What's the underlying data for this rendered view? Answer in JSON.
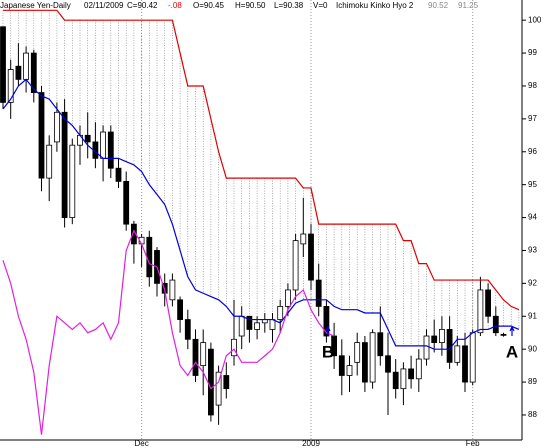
{
  "chart_data": {
    "type": "candlestick",
    "header": [
      "Japanese Yen-Daily",
      "02/11/2009",
      "C=90.42",
      "-.08",
      "O=90.45",
      "H=90.50",
      "L=90.38",
      "V=0",
      "Ichimoku Kinko Hyo 2",
      "90.52",
      "91.25"
    ],
    "categories": [
      null,
      null,
      null,
      null,
      null,
      null,
      null,
      null,
      null,
      null,
      null,
      null,
      null,
      null,
      null,
      null,
      null,
      null,
      "Dec",
      null,
      null,
      null,
      null,
      null,
      null,
      null,
      null,
      null,
      null,
      null,
      null,
      null,
      null,
      null,
      null,
      null,
      null,
      null,
      null,
      null,
      "2009",
      null,
      null,
      null,
      null,
      null,
      null,
      null,
      null,
      null,
      null,
      null,
      null,
      null,
      null,
      null,
      null,
      null,
      null,
      null,
      null,
      "Feb",
      null,
      null,
      null,
      null,
      null,
      null
    ],
    "candles": {
      "open": [
        99.8,
        97.5,
        98.6,
        98.2,
        99,
        97.8,
        95.2,
        96.3,
        97.2,
        94,
        96.2,
        96.5,
        96.3,
        95.8,
        96.6,
        95.5,
        95.1,
        93.8,
        93.2,
        93.4,
        93,
        92,
        91.5,
        91.5,
        90.9,
        90.3,
        89.5,
        90,
        88.3,
        89.2,
        89.8,
        90.4,
        91,
        90.6,
        90.8,
        90.6,
        90.9,
        91.3,
        91.8,
        93.2,
        93.5,
        92.1,
        91.3,
        90.4,
        89.8,
        89.2,
        89.6,
        90.2,
        89,
        90.5,
        89.8,
        89.3,
        88.8,
        89.4,
        89.1,
        89.7,
        90.4,
        90.2,
        90.6,
        89.6,
        90.1,
        89,
        90.5,
        91.8,
        91,
        90.45
      ],
      "high": [
        99.8,
        98.8,
        99.3,
        99.2,
        99.1,
        98,
        96.5,
        97.5,
        97.6,
        96.4,
        96.8,
        97.2,
        96.9,
        96.8,
        96.8,
        95.8,
        95.4,
        93.9,
        93.5,
        93.6,
        93.1,
        92.3,
        92.3,
        91.6,
        91.2,
        90.6,
        90.6,
        90.2,
        89.5,
        89.6,
        91.5,
        91.3,
        91,
        91,
        91.1,
        91.1,
        91.5,
        92,
        93.5,
        94.6,
        93.8,
        92.6,
        91.5,
        90.8,
        90.3,
        89.8,
        90.5,
        90.4,
        90.6,
        91.3,
        90.5,
        89.7,
        89.6,
        89.8,
        90,
        90.6,
        90.9,
        91,
        91,
        90.4,
        90.5,
        90.6,
        92.2,
        92,
        91.3,
        90.5
      ],
      "low": [
        97.3,
        97,
        98,
        97.8,
        97.5,
        94.8,
        94.5,
        96,
        93.7,
        93.8,
        95.6,
        95.8,
        95.5,
        95.1,
        95.2,
        94.9,
        93.6,
        92.6,
        92.5,
        91.9,
        91.6,
        91.3,
        91.3,
        90.5,
        90,
        89,
        88.6,
        87.8,
        87.7,
        88.5,
        89.5,
        90,
        90.2,
        90.3,
        90.5,
        90.2,
        90.5,
        91,
        91.5,
        92.8,
        91.8,
        91,
        90.2,
        89.4,
        88.6,
        88.7,
        89.2,
        88.7,
        88.8,
        89.5,
        88,
        88.5,
        88.3,
        88.8,
        88.7,
        89.5,
        89.9,
        89.8,
        89.4,
        89.5,
        88.7,
        88.9,
        90.4,
        90.8,
        90.4,
        90.38
      ],
      "close": [
        97.5,
        98.5,
        98.2,
        99,
        97.8,
        95.2,
        96.2,
        97.2,
        94,
        96.2,
        96.5,
        96.3,
        95.8,
        96.6,
        95.5,
        95.1,
        93.8,
        93.2,
        93.4,
        92.2,
        92,
        91.7,
        92.1,
        90.9,
        90.3,
        89.2,
        90.2,
        88,
        89.3,
        88.8,
        90.3,
        91,
        90.6,
        90.8,
        90.9,
        90.9,
        91.3,
        91.8,
        93.3,
        93.5,
        92.1,
        91.3,
        90.4,
        89.8,
        89.2,
        89.5,
        90.2,
        89,
        90.5,
        89.8,
        89.3,
        88.8,
        89.4,
        89.1,
        89.7,
        90.4,
        90.2,
        90.6,
        89.6,
        90.1,
        89,
        90.5,
        91.8,
        91,
        90.5,
        90.42
      ]
    },
    "series": [
      {
        "color": "#e00000",
        "values": [
          100.3,
          100.3,
          100.3,
          100.3,
          100.3,
          100.3,
          100.3,
          100.3,
          100,
          100,
          100,
          100,
          100,
          100,
          100,
          100,
          100,
          100,
          100,
          100,
          100,
          100,
          100,
          99,
          98,
          98,
          98,
          97,
          96,
          95.2,
          95.2,
          95.2,
          95.2,
          95.2,
          95.2,
          95.2,
          95.2,
          95.2,
          95.2,
          94.9,
          94.9,
          93.8,
          93.8,
          93.8,
          93.8,
          93.8,
          93.8,
          93.8,
          93.8,
          93.8,
          93.8,
          93.8,
          93.3,
          93.3,
          92.6,
          92.6,
          92.1,
          92.1,
          92.1,
          92.1,
          92.1,
          92.1,
          92.1,
          92.1,
          91.8,
          91.5,
          91.3,
          91.2
        ]
      },
      {
        "color": "#0000dd",
        "values": [
          97.3,
          97.6,
          98,
          98.2,
          97.9,
          97.7,
          97.6,
          97.3,
          97,
          96.8,
          96.5,
          96.2,
          96,
          95.8,
          95.8,
          95.8,
          95.7,
          95.6,
          95.4,
          95,
          94.7,
          94.4,
          93.8,
          93,
          92.2,
          91.8,
          91.7,
          91.6,
          91.5,
          91.3,
          91,
          91,
          90.9,
          90.9,
          90.9,
          90.9,
          90.8,
          91.1,
          91.4,
          91.5,
          91.5,
          91.5,
          91.5,
          91.3,
          91.2,
          91.2,
          91.2,
          91.1,
          91.1,
          91.1,
          90.6,
          90.1,
          90.1,
          90.1,
          90.1,
          90.1,
          90,
          90,
          90,
          90.3,
          90.3,
          90.5,
          90.6,
          90.6,
          90.7,
          90.7,
          90.7,
          90.6
        ]
      },
      {
        "color": "#e020e0",
        "values": [
          92.7,
          92,
          91,
          90.3,
          89.3,
          87.4,
          89.5,
          91,
          90.8,
          90.6,
          90.8,
          90.5,
          90.6,
          90.8,
          90.3,
          90.8,
          93,
          93.6,
          93.2,
          92.6,
          92.5,
          91.8,
          90.5,
          89.5,
          89.2,
          89.6,
          89.3,
          88.8,
          89,
          89.8,
          90,
          89.6,
          89.6,
          89.6,
          89.8,
          90,
          90.5,
          91.2,
          91.6,
          91.8,
          91.2,
          90.8,
          90.5,
          90.4,
          null,
          null,
          null,
          null,
          null,
          null,
          null,
          null,
          null,
          null,
          null,
          null,
          null,
          null,
          null,
          null,
          null,
          null,
          null,
          null,
          null,
          null,
          null,
          null
        ]
      }
    ],
    "annotations": [
      "B",
      "A"
    ],
    "ylim": [
      87.3,
      100.37
    ],
    "yticks": [
      88,
      89,
      90,
      91,
      92,
      93,
      94,
      95,
      96,
      97,
      98,
      99,
      100
    ]
  }
}
